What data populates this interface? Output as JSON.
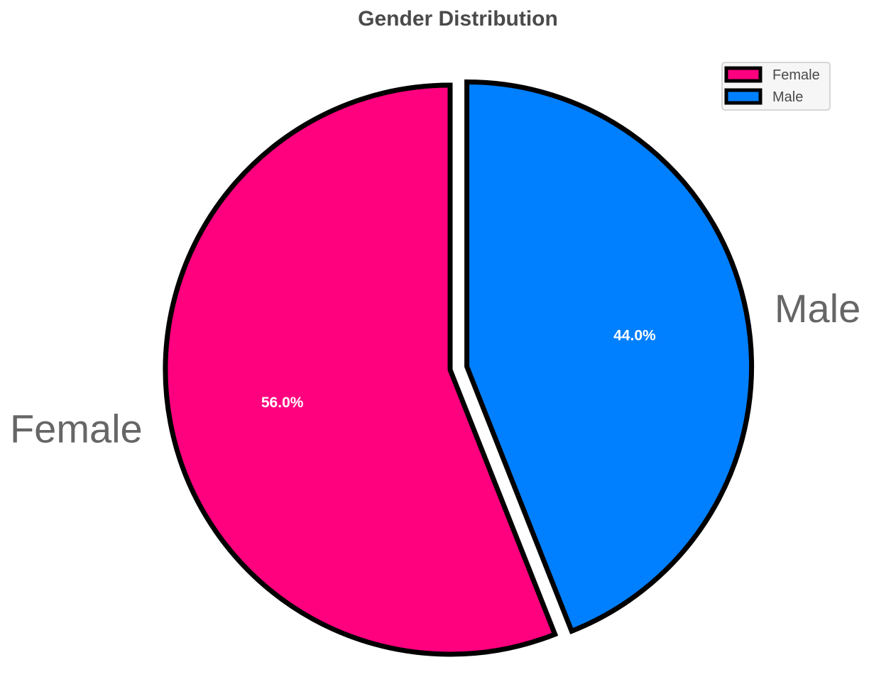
{
  "chart_data": {
    "type": "pie",
    "title": "Gender Distribution",
    "categories": [
      "Female",
      "Male"
    ],
    "values": [
      56.0,
      44.0
    ],
    "value_labels": [
      "56.0%",
      "44.0%"
    ],
    "colors": [
      "#ff007f",
      "#007fff"
    ],
    "edge_color": "#000000",
    "exploded": [
      false,
      true
    ],
    "legend": {
      "placement": "top-right",
      "entries": [
        "Female",
        "Male"
      ]
    }
  }
}
